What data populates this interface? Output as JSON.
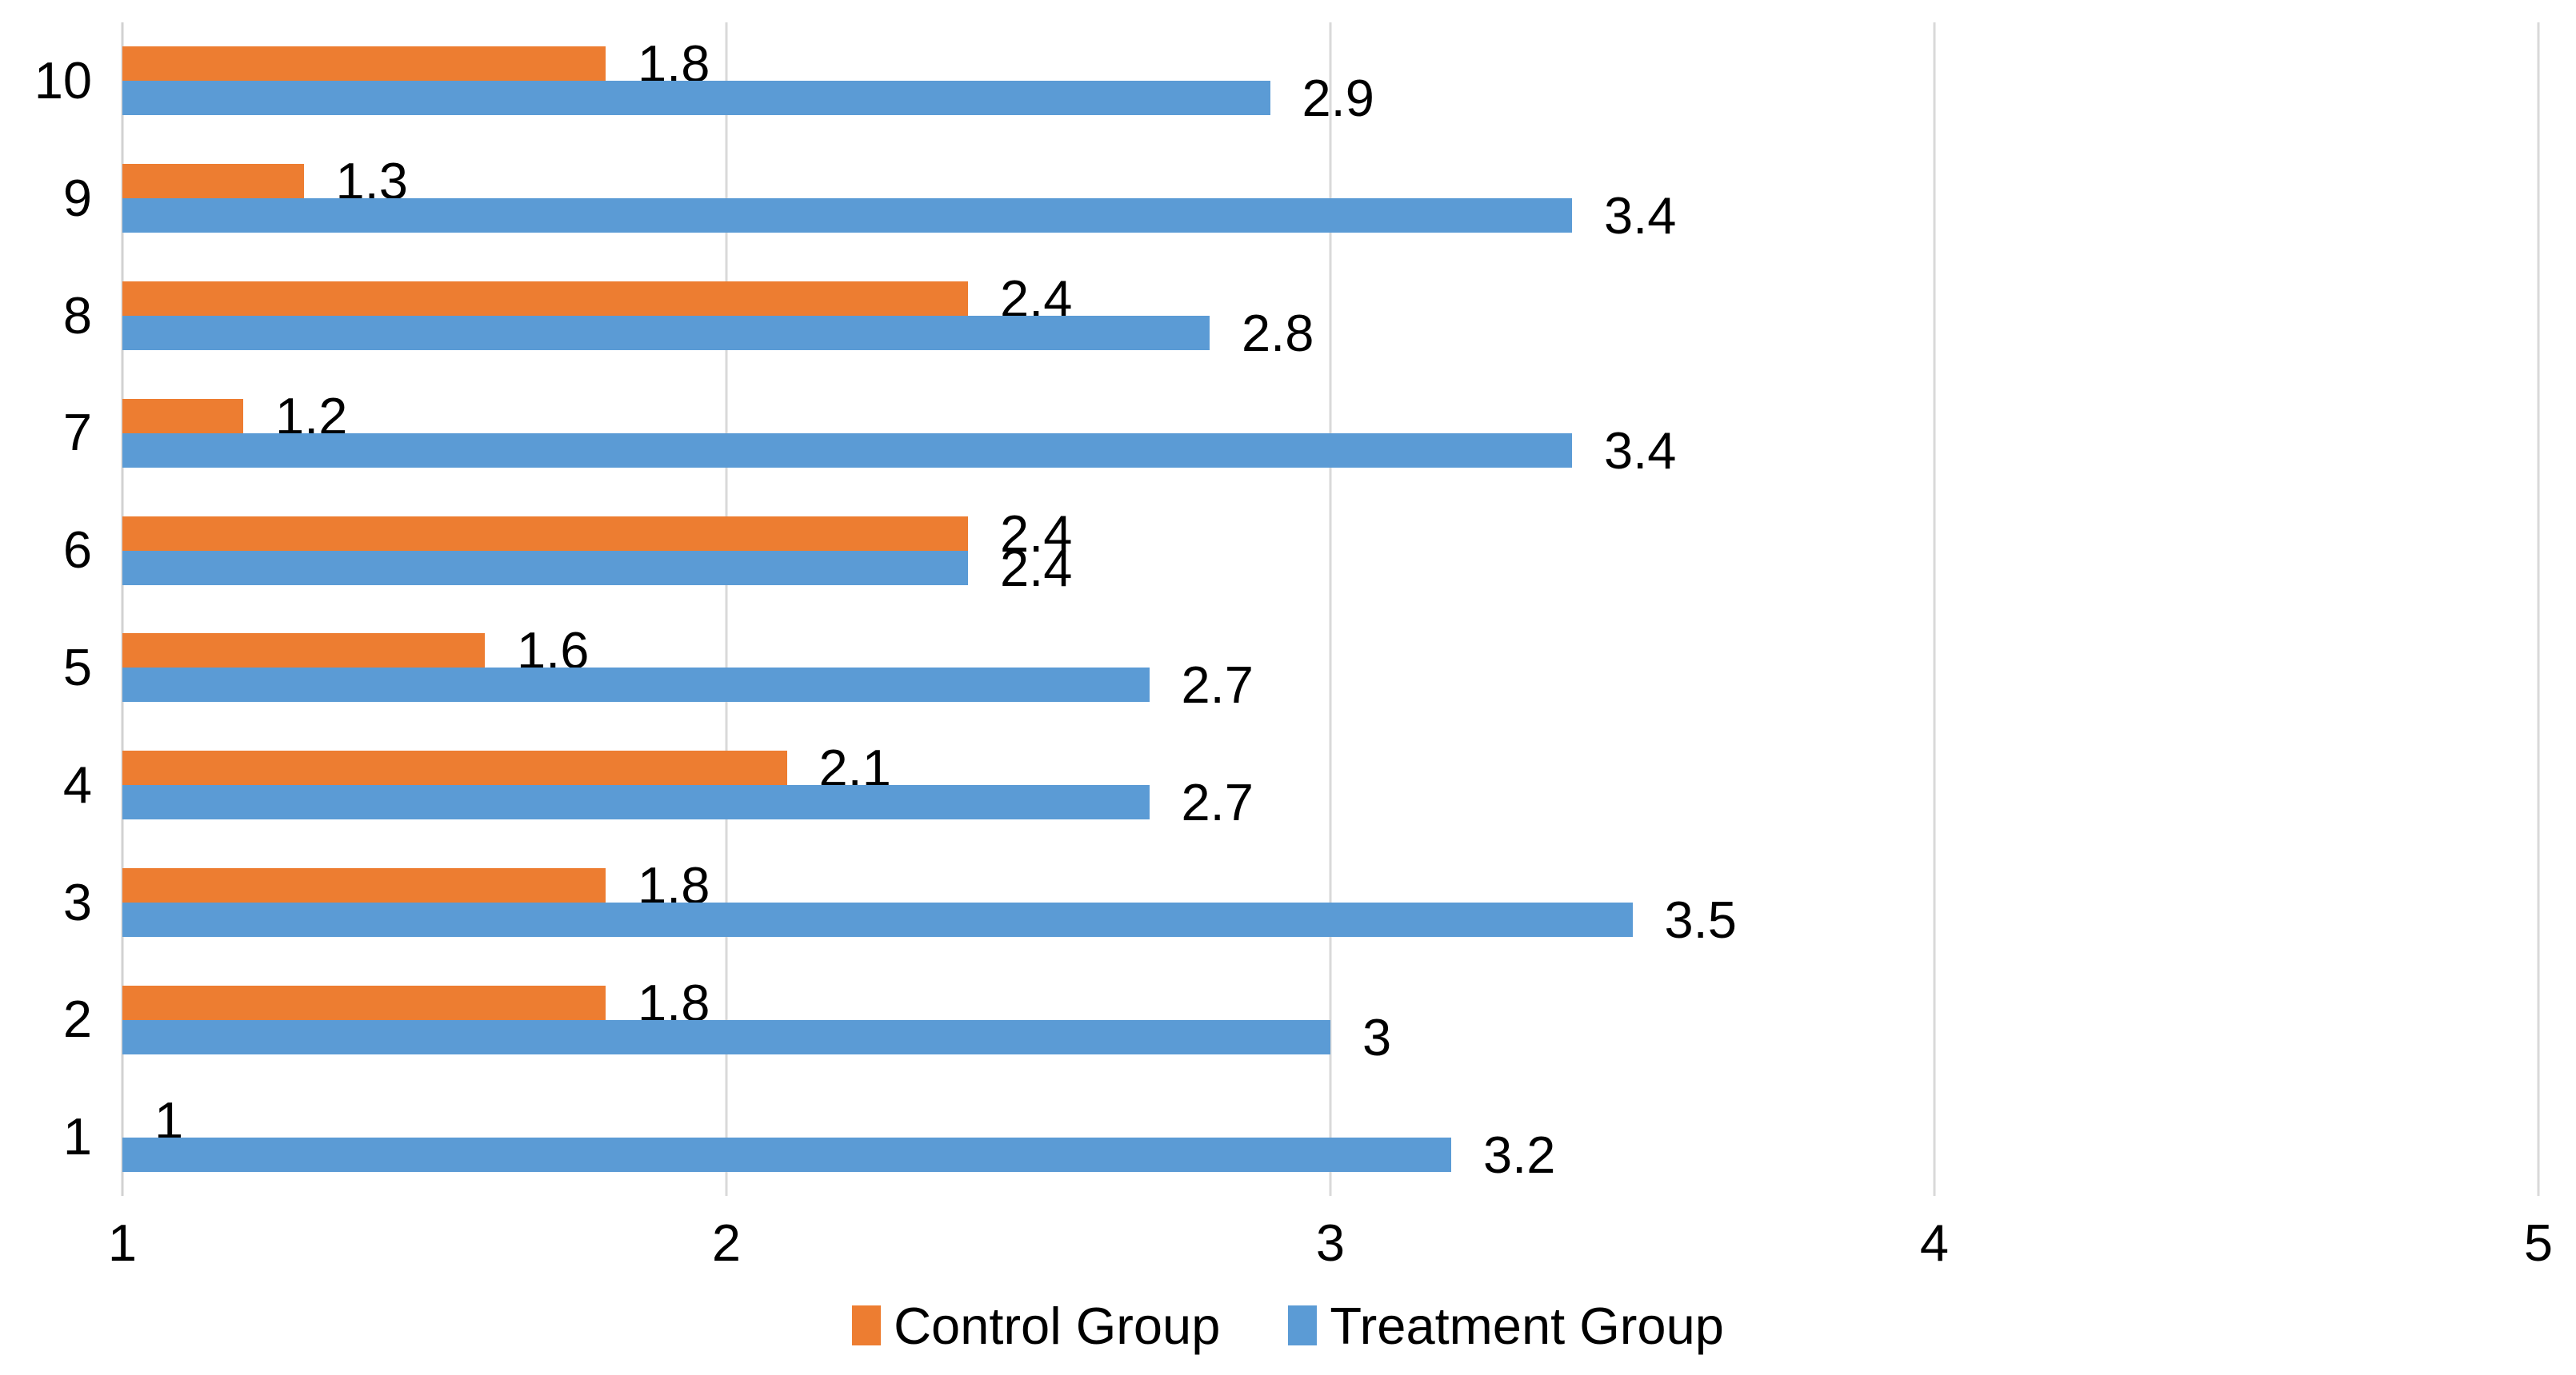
{
  "chart_data": {
    "type": "bar",
    "orientation": "horizontal",
    "title": "",
    "categories": [
      "10",
      "9",
      "8",
      "7",
      "6",
      "5",
      "4",
      "3",
      "2",
      "1"
    ],
    "series": [
      {
        "name": "Control Group",
        "color": "#ED7D31",
        "values": [
          1.8,
          1.3,
          2.4,
          1.2,
          2.4,
          1.6,
          2.1,
          1.8,
          1.8,
          1
        ]
      },
      {
        "name": "Treatment Group",
        "color": "#5B9BD5",
        "values": [
          2.9,
          3.4,
          2.8,
          3.4,
          2.4,
          2.7,
          2.7,
          3.5,
          3,
          3.2
        ]
      }
    ],
    "x_axis": {
      "min": 1,
      "max": 5,
      "ticks": [
        "1",
        "2",
        "3",
        "4",
        "5"
      ]
    },
    "grid": true,
    "gridline_color": "#D9D9D9",
    "text_color": "#000000",
    "data_labels": true,
    "legend_position": "bottom"
  },
  "legend": {
    "items": [
      {
        "label": "Control Group",
        "color": "#ED7D31"
      },
      {
        "label": "Treatment Group",
        "color": "#5B9BD5"
      }
    ]
  }
}
